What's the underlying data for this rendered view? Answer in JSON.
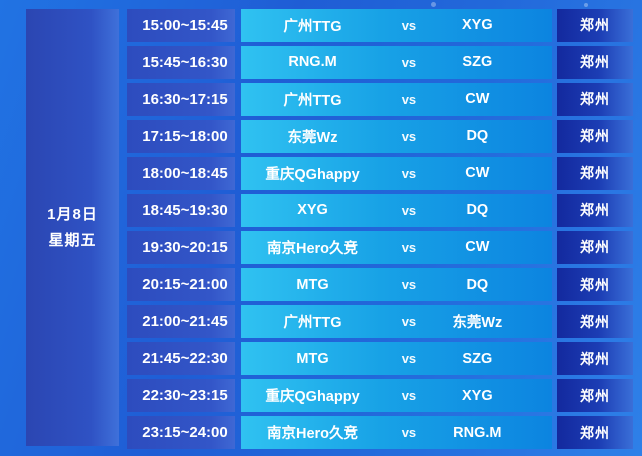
{
  "date_panel": {
    "month_day": "1月8日",
    "weekday": "星期五"
  },
  "rows": [
    {
      "time": "15:00~15:45",
      "home": "广州TTG",
      "vs": "vs",
      "away": "XYG",
      "location": "郑州"
    },
    {
      "time": "15:45~16:30",
      "home": "RNG.M",
      "vs": "vs",
      "away": "SZG",
      "location": "郑州"
    },
    {
      "time": "16:30~17:15",
      "home": "广州TTG",
      "vs": "vs",
      "away": "CW",
      "location": "郑州"
    },
    {
      "time": "17:15~18:00",
      "home": "东莞Wz",
      "vs": "vs",
      "away": "DQ",
      "location": "郑州"
    },
    {
      "time": "18:00~18:45",
      "home": "重庆QGhappy",
      "vs": "vs",
      "away": "CW",
      "location": "郑州"
    },
    {
      "time": "18:45~19:30",
      "home": "XYG",
      "vs": "vs",
      "away": "DQ",
      "location": "郑州"
    },
    {
      "time": "19:30~20:15",
      "home": "南京Hero久竞",
      "vs": "vs",
      "away": "CW",
      "location": "郑州"
    },
    {
      "time": "20:15~21:00",
      "home": "MTG",
      "vs": "vs",
      "away": "DQ",
      "location": "郑州"
    },
    {
      "time": "21:00~21:45",
      "home": "广州TTG",
      "vs": "vs",
      "away": "东莞Wz",
      "location": "郑州"
    },
    {
      "time": "21:45~22:30",
      "home": "MTG",
      "vs": "vs",
      "away": "SZG",
      "location": "郑州"
    },
    {
      "time": "22:30~23:15",
      "home": "重庆QGhappy",
      "vs": "vs",
      "away": "XYG",
      "location": "郑州"
    },
    {
      "time": "23:15~24:00",
      "home": "南京Hero久竞",
      "vs": "vs",
      "away": "RNG.M",
      "location": "郑州"
    }
  ],
  "colors": {
    "bg_start": "#2173e3",
    "bg_mid": "#1f5dd5",
    "bg_end": "#2e80e8",
    "panel_dark": "#2b46b2",
    "panel_dark_light": "#3f71da",
    "time_start": "#2d4cbe",
    "time_end": "#3f68d4",
    "match_start": "#30c2f1",
    "match_end": "#0c84e0",
    "loc_start": "#13299e",
    "loc_end": "#3a6fd8",
    "text": "#ffffff"
  }
}
